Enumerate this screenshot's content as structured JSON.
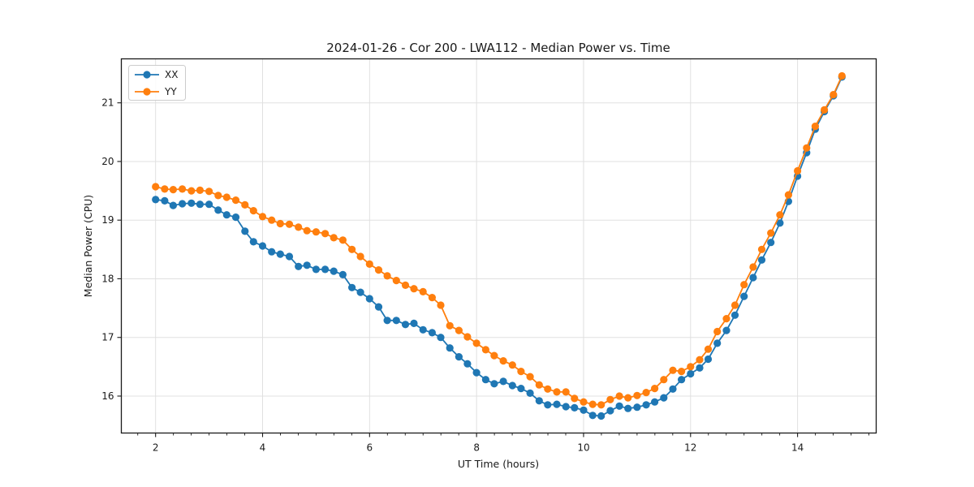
{
  "figure": {
    "title": "2024-01-26 - Cor 200 - LWA112 - Median Power vs. Time",
    "xlabel": "UT Time (hours)",
    "ylabel": "Median Power (CPU)"
  },
  "legend": {
    "items": [
      {
        "label": "XX",
        "color": "#1f77b4"
      },
      {
        "label": "YY",
        "color": "#ff7f0e"
      }
    ]
  },
  "colors": {
    "series_xx": "#1f77b4",
    "series_yy": "#ff7f0e",
    "grid": "#e0e0e0",
    "spine": "#1a1a1a",
    "background": "#ffffff"
  },
  "chart_data": {
    "type": "line",
    "title": "2024-01-26 - Cor 200 - LWA112 - Median Power vs. Time",
    "xlabel": "UT Time (hours)",
    "ylabel": "Median Power (CPU)",
    "xlim": [
      1.36,
      15.47
    ],
    "ylim": [
      15.37,
      21.75
    ],
    "x_ticks": [
      2,
      4,
      6,
      8,
      10,
      12,
      14
    ],
    "y_ticks": [
      16,
      17,
      18,
      19,
      20,
      21
    ],
    "x_minor_step": 0.3333,
    "grid": true,
    "legend_position": "upper left",
    "marker": "o",
    "x": [
      2,
      2.17,
      2.33,
      2.5,
      2.67,
      2.83,
      3,
      3.17,
      3.33,
      3.5,
      3.67,
      3.83,
      4,
      4.17,
      4.33,
      4.5,
      4.67,
      4.83,
      5,
      5.17,
      5.33,
      5.5,
      5.67,
      5.83,
      6,
      6.17,
      6.33,
      6.5,
      6.67,
      6.83,
      7,
      7.17,
      7.33,
      7.5,
      7.67,
      7.83,
      8,
      8.17,
      8.33,
      8.5,
      8.67,
      8.83,
      9,
      9.17,
      9.33,
      9.5,
      9.67,
      9.83,
      10,
      10.17,
      10.33,
      10.5,
      10.67,
      10.83,
      11,
      11.17,
      11.33,
      11.5,
      11.67,
      11.83,
      12,
      12.17,
      12.33,
      12.5,
      12.67,
      12.83,
      13,
      13.17,
      13.33,
      13.5,
      13.67,
      13.83,
      14,
      14.17,
      14.33,
      14.5,
      14.67,
      14.83
    ],
    "series": [
      {
        "name": "XX",
        "color": "#1f77b4",
        "values": [
          19.35,
          19.33,
          19.25,
          19.28,
          19.29,
          19.27,
          19.27,
          19.17,
          19.09,
          19.05,
          18.81,
          18.63,
          18.56,
          18.46,
          18.42,
          18.38,
          18.21,
          18.23,
          18.16,
          18.16,
          18.13,
          18.07,
          17.85,
          17.77,
          17.66,
          17.52,
          17.29,
          17.29,
          17.22,
          17.24,
          17.13,
          17.08,
          17.0,
          16.82,
          16.67,
          16.55,
          16.4,
          16.28,
          16.21,
          16.25,
          16.18,
          16.13,
          16.05,
          15.92,
          15.85,
          15.86,
          15.82,
          15.8,
          15.76,
          15.67,
          15.66,
          15.75,
          15.83,
          15.79,
          15.81,
          15.85,
          15.9,
          15.97,
          16.12,
          16.28,
          16.38,
          16.48,
          16.63,
          16.9,
          17.12,
          17.38,
          17.7,
          18.02,
          18.32,
          18.62,
          18.95,
          19.32,
          19.75,
          20.15,
          20.55,
          20.85,
          21.12,
          21.44
        ]
      },
      {
        "name": "YY",
        "color": "#ff7f0e",
        "values": [
          19.57,
          19.53,
          19.52,
          19.53,
          19.5,
          19.51,
          19.49,
          19.42,
          19.39,
          19.34,
          19.26,
          19.16,
          19.06,
          19.0,
          18.94,
          18.93,
          18.88,
          18.82,
          18.8,
          18.77,
          18.7,
          18.66,
          18.5,
          18.38,
          18.25,
          18.15,
          18.05,
          17.97,
          17.89,
          17.83,
          17.78,
          17.68,
          17.55,
          17.2,
          17.12,
          17.01,
          16.9,
          16.79,
          16.69,
          16.6,
          16.53,
          16.42,
          16.33,
          16.19,
          16.12,
          16.07,
          16.07,
          15.96,
          15.9,
          15.86,
          15.85,
          15.94,
          16.0,
          15.97,
          16.01,
          16.06,
          16.13,
          16.28,
          16.44,
          16.42,
          16.5,
          16.62,
          16.8,
          17.1,
          17.32,
          17.55,
          17.9,
          18.2,
          18.5,
          18.78,
          19.09,
          19.43,
          19.84,
          20.23,
          20.6,
          20.88,
          21.14,
          21.46
        ]
      }
    ]
  }
}
